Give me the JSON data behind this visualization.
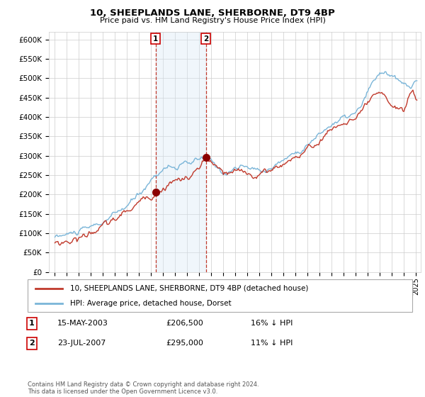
{
  "title": "10, SHEEPLANDS LANE, SHERBORNE, DT9 4BP",
  "subtitle": "Price paid vs. HM Land Registry's House Price Index (HPI)",
  "ylabel_ticks": [
    "£0",
    "£50K",
    "£100K",
    "£150K",
    "£200K",
    "£250K",
    "£300K",
    "£350K",
    "£400K",
    "£450K",
    "£500K",
    "£550K",
    "£600K"
  ],
  "ytick_values": [
    0,
    50000,
    100000,
    150000,
    200000,
    250000,
    300000,
    350000,
    400000,
    450000,
    500000,
    550000,
    600000
  ],
  "ylim": [
    0,
    620000
  ],
  "xlim_start": 1994.5,
  "xlim_end": 2025.4,
  "xtick_years": [
    1995,
    1996,
    1997,
    1998,
    1999,
    2000,
    2001,
    2002,
    2003,
    2004,
    2005,
    2006,
    2007,
    2008,
    2009,
    2010,
    2011,
    2012,
    2013,
    2014,
    2015,
    2016,
    2017,
    2018,
    2019,
    2020,
    2021,
    2022,
    2023,
    2024,
    2025
  ],
  "hpi_color": "#7ab5d8",
  "price_color": "#c0392b",
  "marker_color": "#8b0000",
  "sale1_x": 2003.37,
  "sale1_y": 206500,
  "sale2_x": 2007.55,
  "sale2_y": 295000,
  "sale1_label": "1",
  "sale2_label": "2",
  "vline_color": "#c0392b",
  "shade_color": "#d6e8f5",
  "legend_line1": "10, SHEEPLANDS LANE, SHERBORNE, DT9 4BP (detached house)",
  "legend_line2": "HPI: Average price, detached house, Dorset",
  "table_row1": [
    "1",
    "15-MAY-2003",
    "£206,500",
    "16% ↓ HPI"
  ],
  "table_row2": [
    "2",
    "23-JUL-2007",
    "£295,000",
    "11% ↓ HPI"
  ],
  "footnote": "Contains HM Land Registry data © Crown copyright and database right 2024.\nThis data is licensed under the Open Government Licence v3.0.",
  "background_color": "#ffffff",
  "grid_color": "#cccccc"
}
